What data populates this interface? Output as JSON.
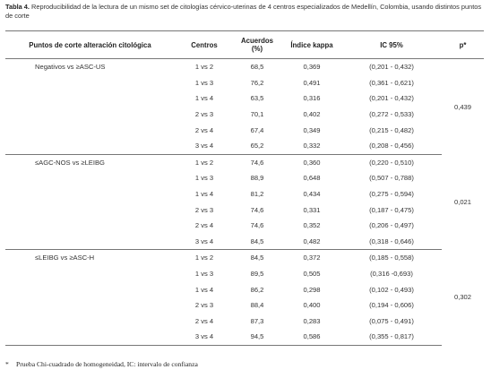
{
  "caption": {
    "label": "Tabla 4.",
    "text": " Reproducibilidad de la lectura de un mismo set de citologías cérvico-uterinas de 4 centros especializados de Medellín, Colombia, usando distintos puntos de corte"
  },
  "table": {
    "headers": {
      "cutoff": "Puntos de corte alteración citológica",
      "centers": "Centros",
      "agreement": "Acuerdos",
      "agreement_unit": "(%)",
      "kappa": "Índice kappa",
      "ci": "IC 95%",
      "p": "p*"
    },
    "groups": [
      {
        "label": "Negativos vs ≥ASC-US",
        "p": "0,439",
        "rows": [
          {
            "centers": "1 vs 2",
            "agreement": "68,5",
            "kappa": "0,369",
            "ci": "(0,201 - 0,432)"
          },
          {
            "centers": "1 vs 3",
            "agreement": "76,2",
            "kappa": "0,491",
            "ci": "(0,361 - 0,621)"
          },
          {
            "centers": "1 vs 4",
            "agreement": "63,5",
            "kappa": "0,316",
            "ci": "(0,201 - 0,432)"
          },
          {
            "centers": "2 vs 3",
            "agreement": "70,1",
            "kappa": "0,402",
            "ci": "(0,272 - 0,533)"
          },
          {
            "centers": "2 vs 4",
            "agreement": "67,4",
            "kappa": "0,349",
            "ci": "(0,215 - 0,482)"
          },
          {
            "centers": "3 vs 4",
            "agreement": "65,2",
            "kappa": "0,332",
            "ci": "(0,208 - 0,456)"
          }
        ]
      },
      {
        "label": "≤AGC-NOS vs ≥LEIBG",
        "p": "0,021",
        "rows": [
          {
            "centers": "1 vs 2",
            "agreement": "74,6",
            "kappa": "0,360",
            "ci": "(0,220 - 0,510)"
          },
          {
            "centers": "1 vs 3",
            "agreement": "88,9",
            "kappa": "0,648",
            "ci": "(0,507 - 0,788)"
          },
          {
            "centers": "1 vs 4",
            "agreement": "81,2",
            "kappa": "0,434",
            "ci": "(0,275 - 0,594)"
          },
          {
            "centers": "2 vs 3",
            "agreement": "74,6",
            "kappa": "0,331",
            "ci": "(0,187 - 0,475)"
          },
          {
            "centers": "2 vs 4",
            "agreement": "74,6",
            "kappa": "0,352",
            "ci": "(0,206 - 0,497)"
          },
          {
            "centers": "3 vs 4",
            "agreement": "84,5",
            "kappa": "0,482",
            "ci": "(0,318 - 0,646)"
          }
        ]
      },
      {
        "label": "≤LEIBG vs ≥ASC-H",
        "p": "0,302",
        "rows": [
          {
            "centers": "1 vs 2",
            "agreement": "84,5",
            "kappa": "0,372",
            "ci": "(0,185 - 0,558)"
          },
          {
            "centers": "1 vs 3",
            "agreement": "89,5",
            "kappa": "0,505",
            "ci": "(0,316 -0,693)"
          },
          {
            "centers": "1 vs 4",
            "agreement": "86,2",
            "kappa": "0,298",
            "ci": "(0,102 - 0,493)"
          },
          {
            "centers": "2 vs 3",
            "agreement": "88,4",
            "kappa": "0,400",
            "ci": "(0,194 - 0,606)"
          },
          {
            "centers": "2 vs 4",
            "agreement": "87,3",
            "kappa": "0,283",
            "ci": "(0,075 - 0,491)"
          },
          {
            "centers": "3 vs 4",
            "agreement": "94,5",
            "kappa": "0,586",
            "ci": "(0,355 - 0,817)"
          }
        ]
      }
    ]
  },
  "footnote": {
    "mark": "*",
    "text": "Prueba Chi-cuadrado de homogeneidad, IC: intervalo de confianza"
  }
}
